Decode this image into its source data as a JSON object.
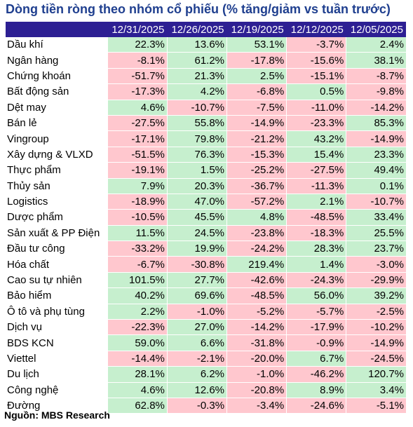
{
  "title": "Dòng tiền ròng theo nhóm cổ phiếu (% tăng/giảm vs tuần trước)",
  "source": "Nguồn: MBS Research",
  "colors": {
    "header_bg": "#2d1f93",
    "positive_bg": "#c6efce",
    "negative_bg": "#ffc7ce",
    "title": "#1f3f8f"
  },
  "chart_data": {
    "type": "table",
    "title": "Dòng tiền ròng theo nhóm cổ phiếu (% tăng/giảm vs tuần trước)",
    "columns": [
      "12/31/2025",
      "12/26/2025",
      "12/19/2025",
      "12/12/2025",
      "12/05/2025"
    ],
    "rows": [
      {
        "name": "Dầu khí",
        "values": [
          "22.3%",
          "13.6%",
          "53.1%",
          "-3.7%",
          "2.4%"
        ]
      },
      {
        "name": "Ngân hàng",
        "values": [
          "-8.1%",
          "61.2%",
          "-17.8%",
          "-15.6%",
          "38.1%"
        ]
      },
      {
        "name": "Chứng khoán",
        "values": [
          "-51.7%",
          "21.3%",
          "2.5%",
          "-15.1%",
          "-8.7%"
        ]
      },
      {
        "name": "Bất động sản",
        "values": [
          "-17.3%",
          "4.2%",
          "-6.8%",
          "0.5%",
          "-9.8%"
        ]
      },
      {
        "name": "Dệt may",
        "values": [
          "4.6%",
          "-10.7%",
          "-7.5%",
          "-11.0%",
          "-14.2%"
        ]
      },
      {
        "name": "Bán lẻ",
        "values": [
          "-27.5%",
          "55.8%",
          "-14.9%",
          "-23.3%",
          "85.3%"
        ]
      },
      {
        "name": "Vingroup",
        "values": [
          "-17.1%",
          "79.8%",
          "-21.2%",
          "43.2%",
          "-14.9%"
        ]
      },
      {
        "name": "Xây dựng & VLXD",
        "values": [
          "-51.5%",
          "76.3%",
          "-15.3%",
          "15.4%",
          "23.3%"
        ]
      },
      {
        "name": "Thực phẩm",
        "values": [
          "-19.1%",
          "1.5%",
          "-25.2%",
          "-27.5%",
          "49.4%"
        ]
      },
      {
        "name": "Thủy sản",
        "values": [
          "7.9%",
          "20.3%",
          "-36.7%",
          "-11.3%",
          "0.1%"
        ]
      },
      {
        "name": "Logistics",
        "values": [
          "-18.9%",
          "47.0%",
          "-57.2%",
          "2.1%",
          "-10.7%"
        ]
      },
      {
        "name": "Dược phẩm",
        "values": [
          "-10.5%",
          "45.5%",
          "4.8%",
          "-48.5%",
          "33.4%"
        ]
      },
      {
        "name": "Sản xuất & PP Điện",
        "values": [
          "11.5%",
          "24.5%",
          "-23.8%",
          "-18.3%",
          "25.5%"
        ]
      },
      {
        "name": "Đầu tư công",
        "values": [
          "-33.2%",
          "19.9%",
          "-24.2%",
          "28.3%",
          "23.7%"
        ]
      },
      {
        "name": "Hóa chất",
        "values": [
          "-6.7%",
          "-30.8%",
          "219.4%",
          "1.4%",
          "-3.0%"
        ]
      },
      {
        "name": "Cao su tự nhiên",
        "values": [
          "101.5%",
          "27.7%",
          "-42.6%",
          "-24.3%",
          "-29.9%"
        ]
      },
      {
        "name": "Bảo hiểm",
        "values": [
          "40.2%",
          "69.6%",
          "-48.5%",
          "56.0%",
          "39.2%"
        ]
      },
      {
        "name": "Ô tô và phụ tùng",
        "values": [
          "2.2%",
          "-1.0%",
          "-5.2%",
          "-5.7%",
          "-2.5%"
        ]
      },
      {
        "name": "Dịch vụ",
        "values": [
          "-22.3%",
          "27.0%",
          "-14.2%",
          "-17.9%",
          "-10.2%"
        ]
      },
      {
        "name": "BDS KCN",
        "values": [
          "59.0%",
          "6.6%",
          "-31.8%",
          "-0.9%",
          "-14.9%"
        ]
      },
      {
        "name": "Viettel",
        "values": [
          "-14.4%",
          "-2.1%",
          "-20.0%",
          "6.7%",
          "-24.5%"
        ]
      },
      {
        "name": "Du lịch",
        "values": [
          "28.1%",
          "6.2%",
          "-1.0%",
          "-46.2%",
          "120.7%"
        ]
      },
      {
        "name": "Công nghệ",
        "values": [
          "4.6%",
          "12.6%",
          "-20.8%",
          "8.9%",
          "3.4%"
        ]
      },
      {
        "name": "Đường",
        "values": [
          "62.8%",
          "-0.3%",
          "-3.4%",
          "-24.6%",
          "-5.1%"
        ]
      }
    ]
  }
}
